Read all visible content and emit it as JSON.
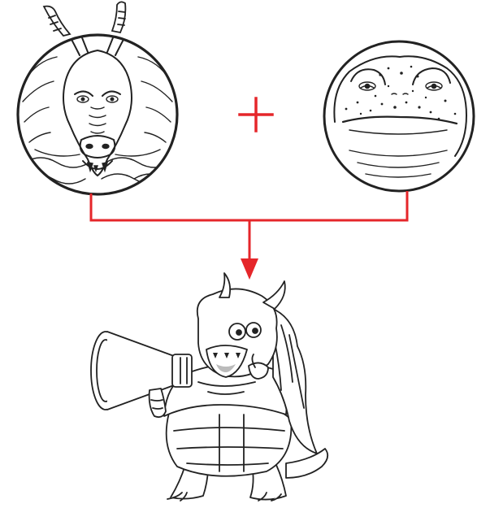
{
  "diagram": {
    "accent_color": "#e5262a",
    "ink_color": "#222222",
    "inputs": [
      {
        "icon": "dragon-head-icon"
      },
      {
        "icon": "toad-head-icon"
      }
    ],
    "operator_icon": "plus-icon",
    "flow_icon": "arrow-down-icon",
    "result": {
      "icon": "dragon-toad-hybrid-megaphone-icon"
    }
  }
}
